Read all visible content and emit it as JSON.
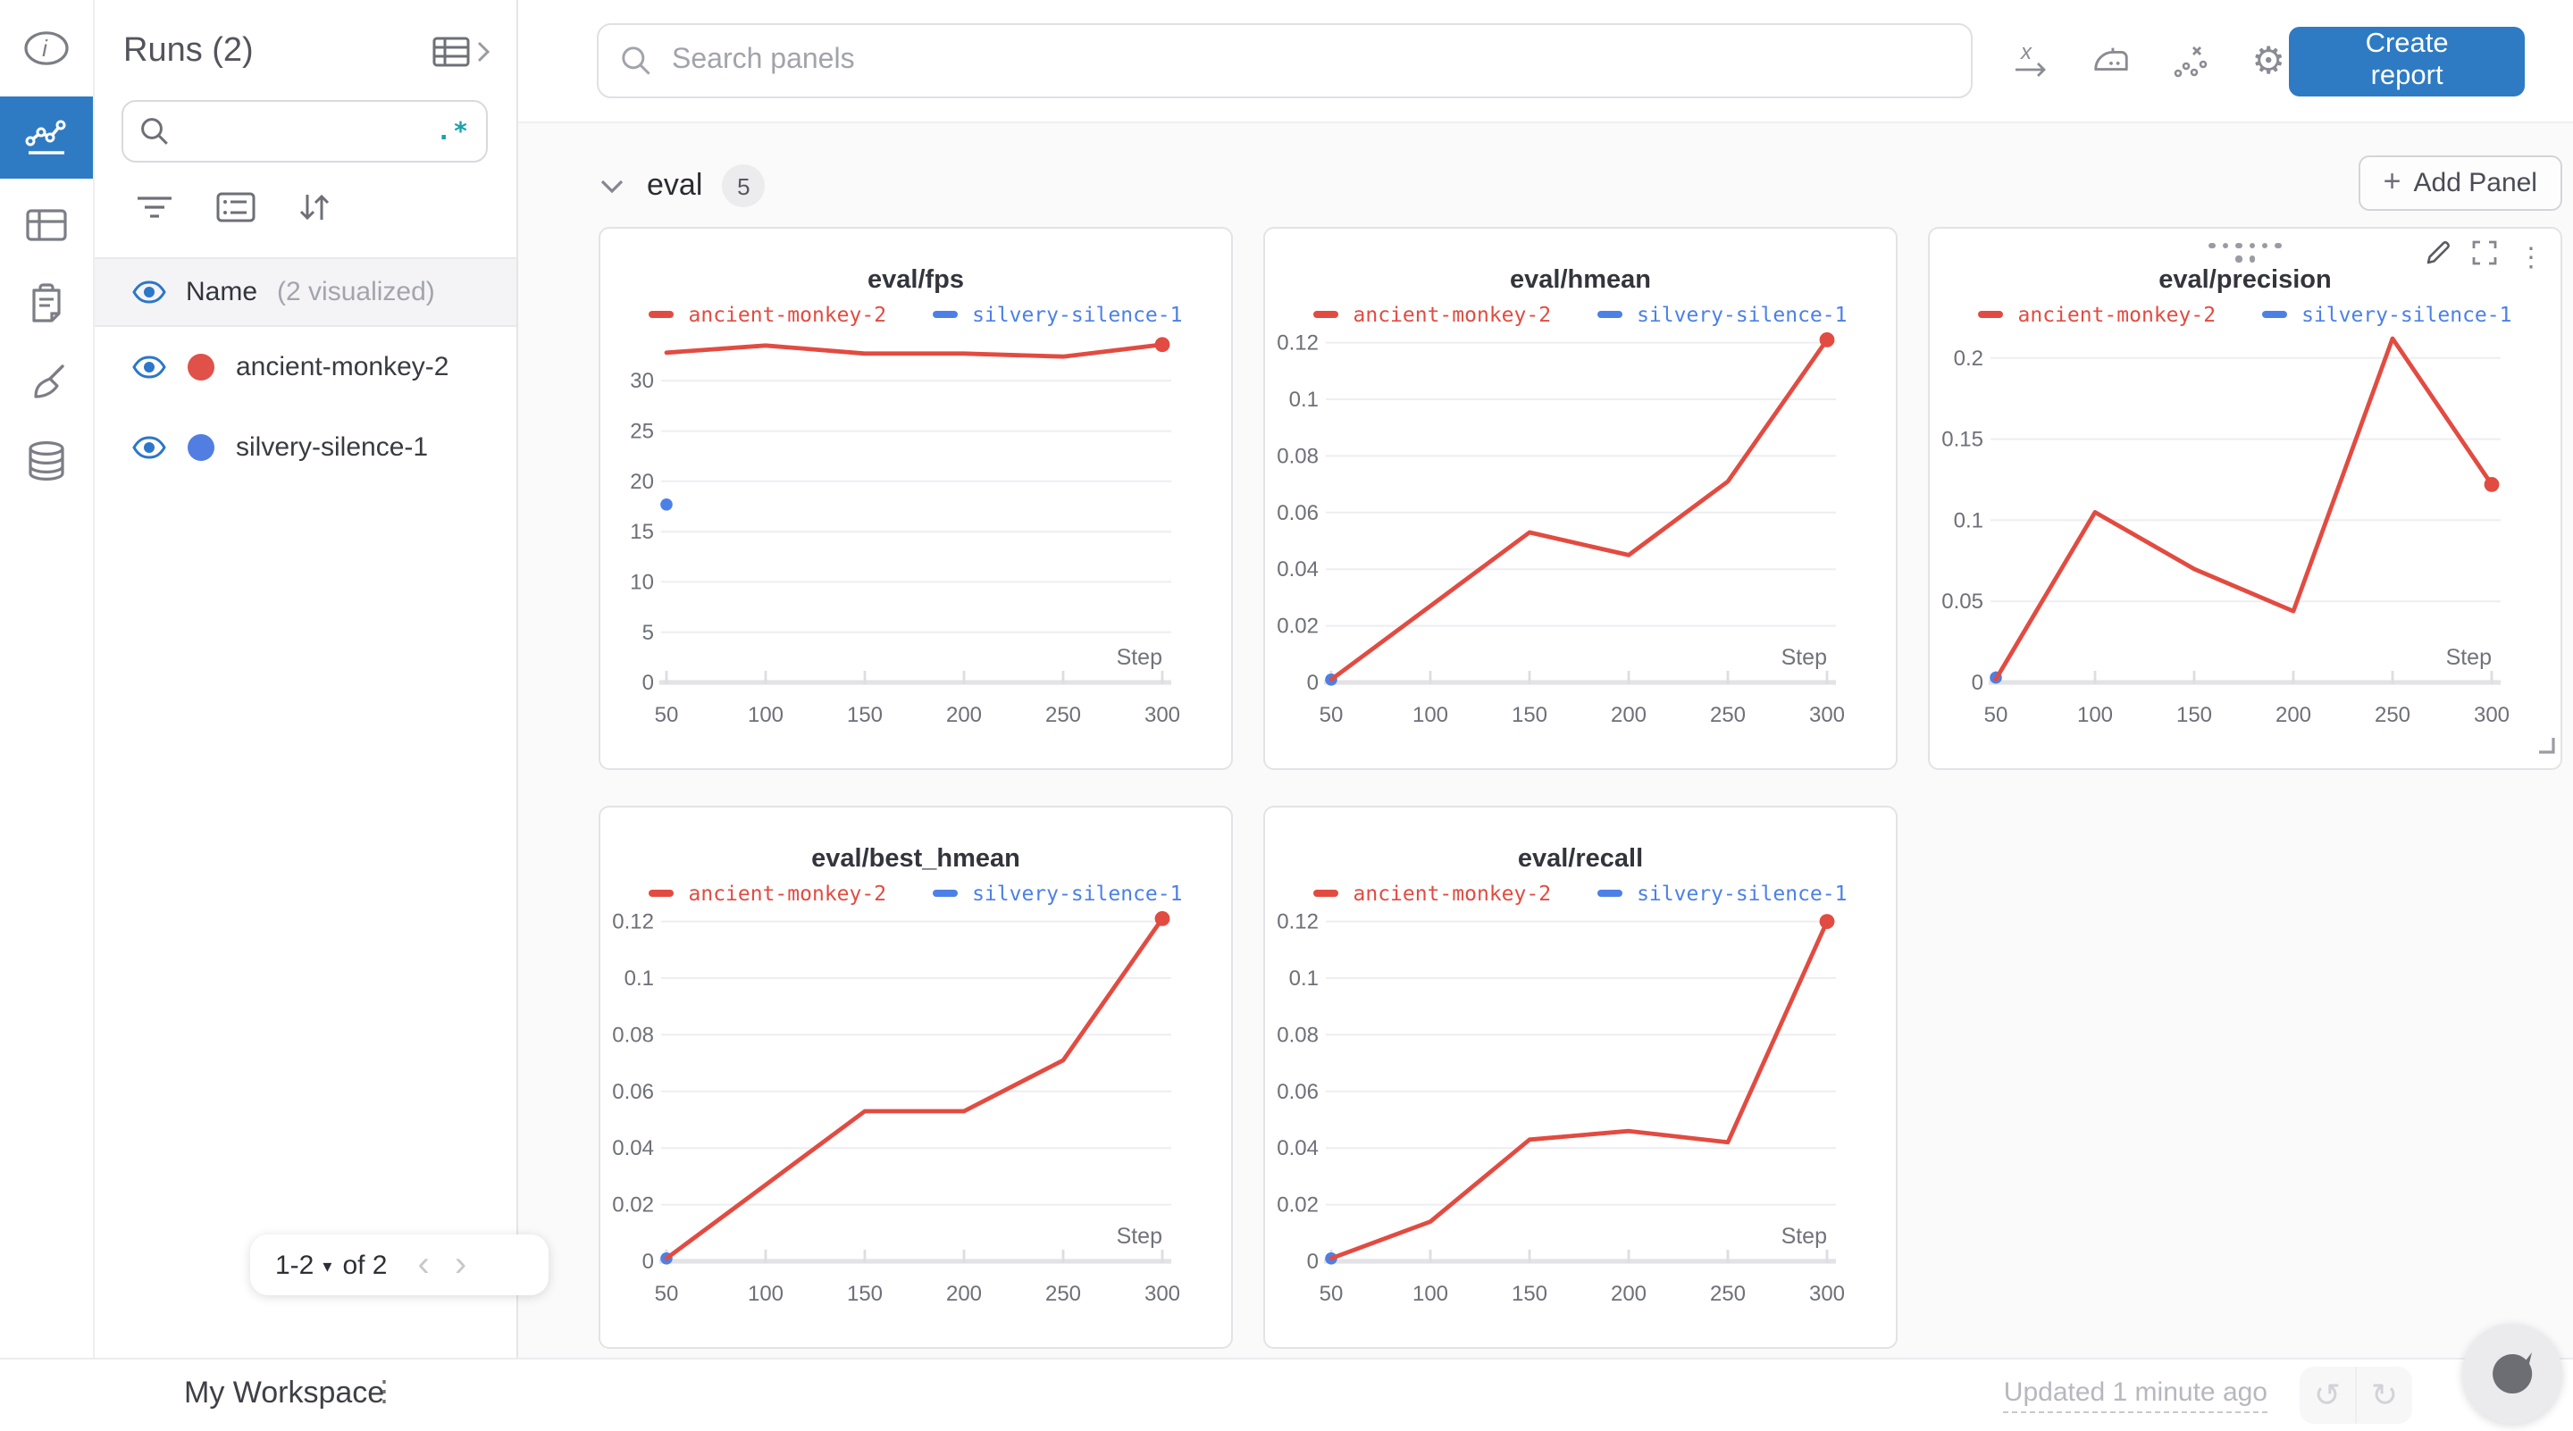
{
  "colors": {
    "red": "#e24b41",
    "blue": "#4c80e6",
    "accent": "#2e7bc4",
    "eye": "#2c77c9"
  },
  "glyphs": {
    "regex": ".*",
    "gear": "⚙",
    "kebab": "⋮",
    "caret_down": "▾",
    "chev_left": "‹",
    "chev_right": "›",
    "undo": "↺",
    "redo": "↻",
    "plus": "+"
  },
  "rail": {
    "items": [
      "info",
      "line-chart",
      "panels",
      "clipboard",
      "broom",
      "database"
    ]
  },
  "runs_panel": {
    "title": "Runs (2)",
    "search_placeholder": "",
    "header": {
      "label": "Name",
      "sub": "(2 visualized)"
    },
    "runs": [
      {
        "name": "ancient-monkey-2",
        "color": "#df5149"
      },
      {
        "name": "silvery-silence-1",
        "color": "#517ee0"
      }
    ],
    "pagination": {
      "range": "1-2",
      "of": "of 2"
    }
  },
  "topbar": {
    "search_placeholder": "Search panels",
    "create_report": "Create report"
  },
  "section": {
    "name": "eval",
    "count": "5",
    "add_panel": "Add Panel"
  },
  "chart_data": [
    {
      "type": "line",
      "title": "eval/fps",
      "xlabel": "Step",
      "x": [
        50,
        100,
        150,
        200,
        250,
        300
      ],
      "yticks": [
        0,
        5,
        10,
        15,
        20,
        25,
        30
      ],
      "ytop": 35,
      "ylim": [
        0,
        35
      ],
      "grid": true,
      "legend_position": "top",
      "series": [
        {
          "name": "ancient-monkey-2",
          "color": "red",
          "points": [
            [
              50,
              32.8
            ],
            [
              100,
              33.5
            ],
            [
              150,
              32.7
            ],
            [
              200,
              32.7
            ],
            [
              250,
              32.4
            ],
            [
              300,
              33.6
            ]
          ]
        },
        {
          "name": "silvery-silence-1",
          "color": "blue",
          "points": [
            [
              50,
              17.7
            ]
          ]
        }
      ]
    },
    {
      "type": "line",
      "title": "eval/hmean",
      "xlabel": "Step",
      "x": [
        50,
        100,
        150,
        200,
        250,
        300
      ],
      "yticks": [
        0,
        0.02,
        0.04,
        0.06,
        0.08,
        0.1,
        0.12
      ],
      "ytop": 0.1243,
      "ylim": [
        0,
        0.1243
      ],
      "grid": true,
      "legend_position": "top",
      "series": [
        {
          "name": "ancient-monkey-2",
          "color": "red",
          "points": [
            [
              50,
              0.001
            ],
            [
              100,
              0.027
            ],
            [
              150,
              0.053
            ],
            [
              200,
              0.045
            ],
            [
              250,
              0.071
            ],
            [
              300,
              0.121
            ]
          ]
        },
        {
          "name": "silvery-silence-1",
          "color": "blue",
          "points": [
            [
              50,
              0.001
            ]
          ]
        }
      ]
    },
    {
      "type": "line",
      "title": "eval/precision",
      "xlabel": "Step",
      "show_controls": true,
      "x": [
        50,
        100,
        150,
        200,
        250,
        300
      ],
      "yticks": [
        0,
        0.05,
        0.1,
        0.15,
        0.2
      ],
      "ytop": 0.217,
      "ylim": [
        0,
        0.217
      ],
      "grid": true,
      "legend_position": "top",
      "series": [
        {
          "name": "ancient-monkey-2",
          "color": "red",
          "points": [
            [
              50,
              0.002
            ],
            [
              100,
              0.105
            ],
            [
              150,
              0.07
            ],
            [
              200,
              0.044
            ],
            [
              250,
              0.212
            ],
            [
              300,
              0.122
            ]
          ]
        },
        {
          "name": "silvery-silence-1",
          "color": "blue",
          "points": [
            [
              50,
              0.003
            ]
          ]
        }
      ]
    },
    {
      "type": "line",
      "title": "eval/best_hmean",
      "xlabel": "Step",
      "x": [
        50,
        100,
        150,
        200,
        250,
        300
      ],
      "yticks": [
        0,
        0.02,
        0.04,
        0.06,
        0.08,
        0.1,
        0.12
      ],
      "ytop": 0.1243,
      "ylim": [
        0,
        0.1243
      ],
      "grid": true,
      "legend_position": "top",
      "series": [
        {
          "name": "ancient-monkey-2",
          "color": "red",
          "points": [
            [
              50,
              0.001
            ],
            [
              100,
              0.027
            ],
            [
              150,
              0.053
            ],
            [
              200,
              0.053
            ],
            [
              250,
              0.071
            ],
            [
              300,
              0.121
            ]
          ]
        },
        {
          "name": "silvery-silence-1",
          "color": "blue",
          "points": [
            [
              50,
              0.001
            ]
          ]
        }
      ]
    },
    {
      "type": "line",
      "title": "eval/recall",
      "xlabel": "Step",
      "x": [
        50,
        100,
        150,
        200,
        250,
        300
      ],
      "yticks": [
        0,
        0.02,
        0.04,
        0.06,
        0.08,
        0.1,
        0.12
      ],
      "ytop": 0.1243,
      "ylim": [
        0,
        0.1243
      ],
      "grid": true,
      "legend_position": "top",
      "series": [
        {
          "name": "ancient-monkey-2",
          "color": "red",
          "points": [
            [
              50,
              0.001
            ],
            [
              100,
              0.014
            ],
            [
              150,
              0.043
            ],
            [
              200,
              0.046
            ],
            [
              250,
              0.042
            ],
            [
              300,
              0.12
            ]
          ]
        },
        {
          "name": "silvery-silence-1",
          "color": "blue",
          "points": [
            [
              50,
              0.001
            ]
          ]
        }
      ]
    }
  ],
  "bottombar": {
    "workspace": "My Workspace",
    "updated": "Updated 1 minute ago"
  }
}
